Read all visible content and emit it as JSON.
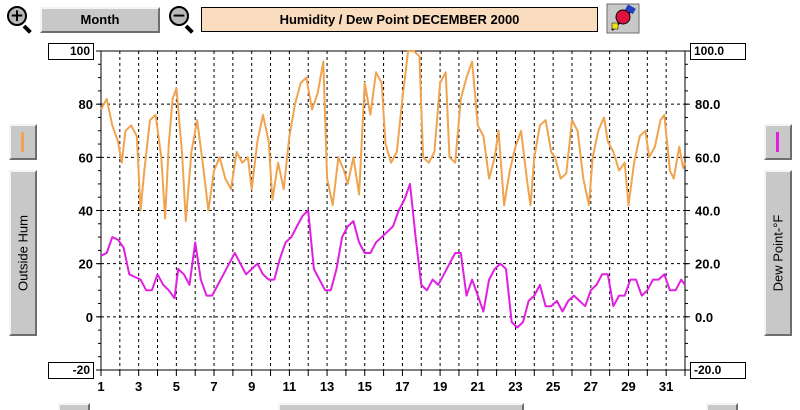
{
  "toolbar": {
    "zoom_in_symbol": "+",
    "zoom_out_symbol": "−",
    "period_button": "Month",
    "title": "Humidity  /  Dew Point  DECEMBER 2000"
  },
  "left_panel": {
    "label": "Outside Hum",
    "color": "#f0a450"
  },
  "right_panel": {
    "label": "Dew Point-°F",
    "color": "#e020e0"
  },
  "chart_data": {
    "type": "line",
    "title": "Humidity  /  Dew Point  DECEMBER 2000",
    "x_tick_labels": [
      "1",
      "3",
      "5",
      "7",
      "9",
      "11",
      "13",
      "15",
      "17",
      "19",
      "21",
      "23",
      "25",
      "27",
      "29",
      "31"
    ],
    "xlim": [
      1,
      32
    ],
    "left_axis": {
      "label": "Outside Hum",
      "ylim": [
        -20,
        100
      ],
      "tick_labels": [
        "-20",
        "0",
        "20",
        "40",
        "60",
        "80",
        "100"
      ]
    },
    "right_axis": {
      "label": "Dew Point-°F",
      "ylim": [
        -20,
        100
      ],
      "tick_labels": [
        "-20.0",
        "0.0",
        "20.0",
        "40.0",
        "60.0",
        "80.0",
        "100.0"
      ]
    },
    "grid": true,
    "series": [
      {
        "name": "Outside Hum",
        "axis": "left",
        "color": "#f0a450",
        "points": [
          [
            1,
            78
          ],
          [
            1.3,
            82
          ],
          [
            1.6,
            72
          ],
          [
            1.9,
            66
          ],
          [
            2.1,
            58
          ],
          [
            2.3,
            70
          ],
          [
            2.6,
            72
          ],
          [
            2.9,
            68
          ],
          [
            3.1,
            40
          ],
          [
            3.3,
            55
          ],
          [
            3.6,
            74
          ],
          [
            3.9,
            76
          ],
          [
            4.2,
            60
          ],
          [
            4.4,
            37
          ],
          [
            4.6,
            65
          ],
          [
            4.8,
            82
          ],
          [
            5.0,
            86
          ],
          [
            5.3,
            62
          ],
          [
            5.5,
            36
          ],
          [
            5.8,
            62
          ],
          [
            6.1,
            74
          ],
          [
            6.4,
            58
          ],
          [
            6.7,
            40
          ],
          [
            7.0,
            55
          ],
          [
            7.3,
            60
          ],
          [
            7.6,
            52
          ],
          [
            7.9,
            48
          ],
          [
            8.2,
            62
          ],
          [
            8.5,
            58
          ],
          [
            8.8,
            60
          ],
          [
            9.0,
            48
          ],
          [
            9.3,
            66
          ],
          [
            9.6,
            76
          ],
          [
            9.9,
            66
          ],
          [
            10.1,
            44
          ],
          [
            10.4,
            58
          ],
          [
            10.7,
            48
          ],
          [
            11.0,
            68
          ],
          [
            11.3,
            80
          ],
          [
            11.6,
            88
          ],
          [
            11.9,
            90
          ],
          [
            12.2,
            78
          ],
          [
            12.5,
            84
          ],
          [
            12.8,
            96
          ],
          [
            13.0,
            52
          ],
          [
            13.3,
            42
          ],
          [
            13.6,
            60
          ],
          [
            13.9,
            55
          ],
          [
            14.1,
            50
          ],
          [
            14.4,
            60
          ],
          [
            14.7,
            46
          ],
          [
            15.0,
            88
          ],
          [
            15.3,
            76
          ],
          [
            15.6,
            92
          ],
          [
            15.9,
            88
          ],
          [
            16.1,
            65
          ],
          [
            16.4,
            58
          ],
          [
            16.7,
            62
          ],
          [
            17.0,
            82
          ],
          [
            17.3,
            100
          ],
          [
            17.6,
            100
          ],
          [
            17.9,
            98
          ],
          [
            18.1,
            60
          ],
          [
            18.4,
            58
          ],
          [
            18.7,
            62
          ],
          [
            19.0,
            88
          ],
          [
            19.3,
            92
          ],
          [
            19.5,
            60
          ],
          [
            19.8,
            58
          ],
          [
            20.1,
            82
          ],
          [
            20.4,
            90
          ],
          [
            20.7,
            96
          ],
          [
            21.0,
            72
          ],
          [
            21.3,
            68
          ],
          [
            21.6,
            52
          ],
          [
            21.9,
            60
          ],
          [
            22.1,
            70
          ],
          [
            22.4,
            42
          ],
          [
            22.7,
            55
          ],
          [
            23.0,
            64
          ],
          [
            23.3,
            70
          ],
          [
            23.6,
            52
          ],
          [
            23.8,
            42
          ],
          [
            24.0,
            60
          ],
          [
            24.3,
            72
          ],
          [
            24.6,
            74
          ],
          [
            24.9,
            62
          ],
          [
            25.1,
            60
          ],
          [
            25.4,
            52
          ],
          [
            25.7,
            54
          ],
          [
            26.0,
            74
          ],
          [
            26.3,
            70
          ],
          [
            26.6,
            52
          ],
          [
            26.9,
            42
          ],
          [
            27.1,
            60
          ],
          [
            27.4,
            70
          ],
          [
            27.7,
            75
          ],
          [
            27.9,
            66
          ],
          [
            28.2,
            62
          ],
          [
            28.5,
            55
          ],
          [
            28.8,
            58
          ],
          [
            29.0,
            42
          ],
          [
            29.3,
            58
          ],
          [
            29.6,
            68
          ],
          [
            29.9,
            70
          ],
          [
            30.1,
            60
          ],
          [
            30.4,
            64
          ],
          [
            30.7,
            74
          ],
          [
            30.9,
            76
          ],
          [
            31.2,
            55
          ],
          [
            31.4,
            52
          ],
          [
            31.7,
            64
          ],
          [
            31.9,
            56
          ],
          [
            32.0,
            58
          ]
        ]
      },
      {
        "name": "Dew Point-°F",
        "axis": "right",
        "color": "#e020e0",
        "points": [
          [
            1,
            23
          ],
          [
            1.3,
            24
          ],
          [
            1.6,
            30
          ],
          [
            1.9,
            29
          ],
          [
            2.2,
            26
          ],
          [
            2.5,
            16
          ],
          [
            2.8,
            15
          ],
          [
            3.1,
            14
          ],
          [
            3.4,
            10
          ],
          [
            3.7,
            10
          ],
          [
            4.0,
            16
          ],
          [
            4.3,
            12
          ],
          [
            4.6,
            10
          ],
          [
            4.9,
            7
          ],
          [
            5.1,
            18
          ],
          [
            5.4,
            16
          ],
          [
            5.7,
            12
          ],
          [
            6.0,
            28
          ],
          [
            6.3,
            14
          ],
          [
            6.6,
            8
          ],
          [
            6.9,
            8
          ],
          [
            7.2,
            12
          ],
          [
            7.5,
            16
          ],
          [
            7.8,
            20
          ],
          [
            8.1,
            24
          ],
          [
            8.4,
            20
          ],
          [
            8.7,
            16
          ],
          [
            9.0,
            18
          ],
          [
            9.3,
            20
          ],
          [
            9.6,
            16
          ],
          [
            9.9,
            14
          ],
          [
            10.2,
            14
          ],
          [
            10.5,
            22
          ],
          [
            10.8,
            28
          ],
          [
            11.1,
            30
          ],
          [
            11.4,
            34
          ],
          [
            11.7,
            38
          ],
          [
            12.0,
            40
          ],
          [
            12.3,
            18
          ],
          [
            12.6,
            14
          ],
          [
            12.9,
            10
          ],
          [
            13.2,
            10
          ],
          [
            13.5,
            18
          ],
          [
            13.8,
            30
          ],
          [
            14.1,
            34
          ],
          [
            14.4,
            36
          ],
          [
            14.7,
            28
          ],
          [
            15.0,
            24
          ],
          [
            15.3,
            24
          ],
          [
            15.6,
            28
          ],
          [
            15.9,
            30
          ],
          [
            16.2,
            32
          ],
          [
            16.5,
            34
          ],
          [
            16.8,
            40
          ],
          [
            17.1,
            44
          ],
          [
            17.4,
            50
          ],
          [
            17.7,
            30
          ],
          [
            18.0,
            12
          ],
          [
            18.3,
            10
          ],
          [
            18.6,
            14
          ],
          [
            18.9,
            12
          ],
          [
            19.2,
            16
          ],
          [
            19.5,
            20
          ],
          [
            19.8,
            24
          ],
          [
            20.1,
            24
          ],
          [
            20.4,
            8
          ],
          [
            20.7,
            14
          ],
          [
            21.0,
            8
          ],
          [
            21.3,
            2
          ],
          [
            21.6,
            14
          ],
          [
            21.9,
            18
          ],
          [
            22.2,
            20
          ],
          [
            22.5,
            18
          ],
          [
            22.8,
            -2
          ],
          [
            23.1,
            -4
          ],
          [
            23.4,
            -2
          ],
          [
            23.7,
            6
          ],
          [
            24.0,
            8
          ],
          [
            24.3,
            12
          ],
          [
            24.6,
            4
          ],
          [
            24.9,
            4
          ],
          [
            25.2,
            6
          ],
          [
            25.5,
            2
          ],
          [
            25.8,
            6
          ],
          [
            26.1,
            8
          ],
          [
            26.4,
            6
          ],
          [
            26.7,
            4
          ],
          [
            27.0,
            10
          ],
          [
            27.3,
            12
          ],
          [
            27.6,
            16
          ],
          [
            27.9,
            16
          ],
          [
            28.2,
            4
          ],
          [
            28.5,
            8
          ],
          [
            28.8,
            8
          ],
          [
            29.1,
            14
          ],
          [
            29.4,
            14
          ],
          [
            29.7,
            8
          ],
          [
            30.0,
            10
          ],
          [
            30.3,
            14
          ],
          [
            30.6,
            14
          ],
          [
            30.9,
            16
          ],
          [
            31.2,
            10
          ],
          [
            31.5,
            10
          ],
          [
            31.8,
            14
          ],
          [
            32.0,
            12
          ]
        ]
      }
    ]
  }
}
